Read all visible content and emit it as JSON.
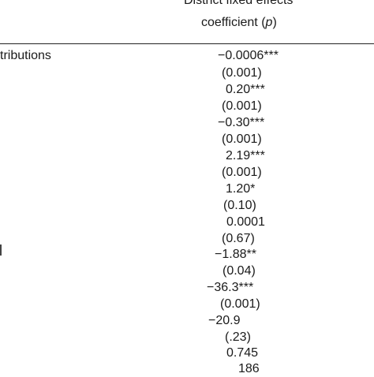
{
  "table": {
    "header": {
      "line1": "District fixed effects",
      "line2_prefix": "coefficient (",
      "line2_var": "p",
      "line2_suffix": ")"
    },
    "row_label_partial": "tributions",
    "cells": [
      "−0.0006***",
      "(0.001)",
      "0.20***",
      "(0.001)",
      "−0.30***",
      "(0.001)",
      "2.19***",
      "(0.001)",
      "1.20*",
      "(0.10)",
      "0.0001",
      "(0.67)",
      "−1.88**",
      "(0.04)",
      "−36.3***",
      "(0.001)",
      "−20.9",
      "(.23)",
      "0.745",
      "186"
    ]
  }
}
